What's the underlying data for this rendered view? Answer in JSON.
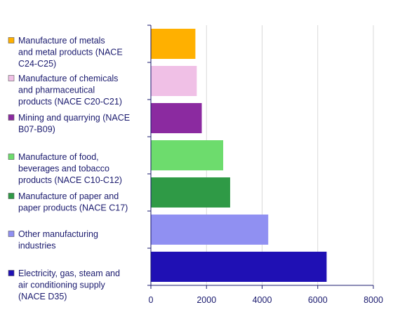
{
  "chart_data": {
    "type": "bar",
    "orientation": "horizontal",
    "title": "",
    "xlabel": "",
    "ylabel": "",
    "xlim": [
      0,
      8000
    ],
    "x_ticks": [
      "0",
      "2000",
      "4000",
      "6000",
      "8000"
    ],
    "grid": true,
    "legend_position": "left",
    "categories": [
      {
        "label": "Manufacture of metals and metal products (NACE C24-C25)",
        "legend_lines": [
          "Manufacture of metals",
          "and metal products (NACE",
          "C24-C25)"
        ],
        "value": 1600,
        "color": "#ffb000"
      },
      {
        "label": "Manufacture of chemicals and pharmaceutical products (NACE C20-C21)",
        "legend_lines": [
          "Manufacture of chemicals",
          "and pharmaceutical",
          "products (NACE C20-C21)"
        ],
        "value": 1650,
        "color": "#f0c0e6"
      },
      {
        "label": "Mining and quarrying (NACE B07-B09)",
        "legend_lines": [
          "Mining and quarrying (NACE",
          "B07-B09)"
        ],
        "value": 1830,
        "color": "#8b2aa0"
      },
      {
        "label": "Manufacture of food, beverages and tobacco products (NACE C10-C12)",
        "legend_lines": [
          "Manufacture of food,",
          "beverages and tobacco",
          "products (NACE C10-C12)"
        ],
        "value": 2600,
        "color": "#6ddc6d"
      },
      {
        "label": "Manufacture of paper and paper products (NACE C17)",
        "legend_lines": [
          "Manufacture of paper and",
          "paper products (NACE C17)"
        ],
        "value": 2850,
        "color": "#2f9a46"
      },
      {
        "label": "Other manufacturing industries",
        "legend_lines": [
          "Other manufacturing",
          "industries"
        ],
        "value": 4220,
        "color": "#9090f2"
      },
      {
        "label": "Electricity, gas, steam and air conditioning supply (NACE D35)",
        "legend_lines": [
          "Electricity, gas, steam and",
          "air conditioning supply",
          "(NACE D35)"
        ],
        "value": 6320,
        "color": "#1f10b4"
      }
    ]
  }
}
